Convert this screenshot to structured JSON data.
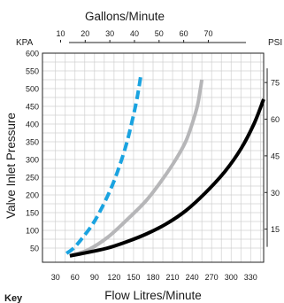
{
  "chart_data": {
    "type": "line",
    "title": "",
    "xlabel": "Flow Litres/Minute",
    "ylabel": "Valve Inlet Pressure",
    "top_axis_label": "Gallons/Minute",
    "left_unit": "KPA",
    "right_unit": "PSI",
    "xlim": [
      10,
      350
    ],
    "ylim": [
      10,
      600
    ],
    "x_ticks": [
      30,
      60,
      90,
      120,
      150,
      180,
      210,
      240,
      270,
      300,
      330
    ],
    "y_ticks": [
      50,
      100,
      150,
      200,
      250,
      300,
      350,
      400,
      450,
      500,
      550,
      600
    ],
    "top_ticks": [
      10,
      20,
      30,
      40,
      50,
      60,
      70
    ],
    "right_ticks": [
      15,
      30,
      45,
      60,
      75
    ],
    "grid": true,
    "key_label": "Key",
    "series": [
      {
        "color": "#1aa3e0",
        "dash": true,
        "x": [
          47,
          58,
          72,
          88,
          103,
          118,
          130,
          140,
          148,
          154,
          158,
          161
        ],
        "y": [
          35,
          50,
          80,
          120,
          170,
          230,
          290,
          350,
          410,
          460,
          500,
          535
        ]
      },
      {
        "color": "#b6b6b8",
        "dash": false,
        "x": [
          55,
          80,
          110,
          140,
          170,
          195,
          215,
          230,
          240,
          248,
          252,
          255
        ],
        "y": [
          30,
          45,
          80,
          130,
          185,
          245,
          300,
          350,
          400,
          450,
          490,
          525
        ]
      },
      {
        "color": "#000000",
        "dash": false,
        "x": [
          52,
          80,
          110,
          140,
          170,
          200,
          230,
          260,
          290,
          315,
          335,
          350
        ],
        "y": [
          28,
          38,
          50,
          68,
          90,
          118,
          155,
          205,
          265,
          330,
          400,
          470
        ]
      }
    ]
  }
}
